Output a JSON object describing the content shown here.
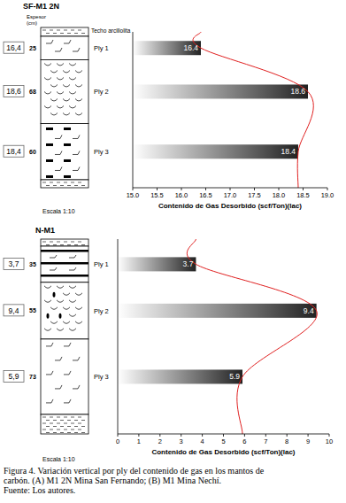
{
  "chart_data": [
    {
      "type": "bar",
      "orientation": "horizontal",
      "title": "SF-M1 2N",
      "categories": [
        "Ply 1",
        "Ply 2",
        "Ply 3"
      ],
      "values": [
        16.4,
        18.6,
        18.4
      ],
      "data_labels": true,
      "color": "#222222",
      "grid": false,
      "xlabel": "Contenido de Gas Desorbido (scf/Ton)(lac)",
      "xlim": [
        15,
        19
      ],
      "xticks": [
        {
          "value": 15,
          "label": "15.0"
        },
        {
          "value": 15.5,
          "label": "15.5"
        },
        {
          "value": 16,
          "label": "16.0"
        },
        {
          "value": 16.5,
          "label": "16.5"
        },
        {
          "value": 17,
          "label": "17.0"
        },
        {
          "value": 17.5,
          "label": "17.5"
        },
        {
          "value": 18,
          "label": "18.0"
        },
        {
          "value": 18.5,
          "label": "18.5"
        },
        {
          "value": 19,
          "label": "19.0"
        }
      ],
      "column": {
        "thickness_label": "Espesor (cm)",
        "top_label": "Techo arcillolita",
        "thickness": [
          25,
          68,
          60
        ],
        "box_labels": [
          "16,4",
          "18,6",
          "18,4"
        ],
        "scale_label": "Escala 1:10"
      }
    },
    {
      "type": "bar",
      "orientation": "horizontal",
      "title": "N-M1",
      "categories": [
        "Ply 1",
        "Ply 2",
        "Ply 3"
      ],
      "values": [
        3.7,
        9.4,
        5.9
      ],
      "data_labels": true,
      "color": "#222222",
      "grid": false,
      "xlabel": "Contenido de Gas Desorbido (scf/Ton)(lac)",
      "xlim": [
        0,
        10
      ],
      "xticks": [
        0,
        1,
        2,
        3,
        4,
        5,
        6,
        7,
        8,
        9,
        10
      ],
      "column": {
        "thickness": [
          35,
          55,
          73
        ],
        "box_labels": [
          "3,7",
          "9,4",
          "5,9"
        ],
        "scale_label": "Escala 1:10"
      }
    }
  ],
  "caption": [
    "Figura 4. Variación vertical por ply del contenido de gas en los mantos de",
    "carbón. (A) M1 2N Mina San Fernando; (B) M1 Mina Nechí."
  ],
  "source": "Fuente: Los autores."
}
